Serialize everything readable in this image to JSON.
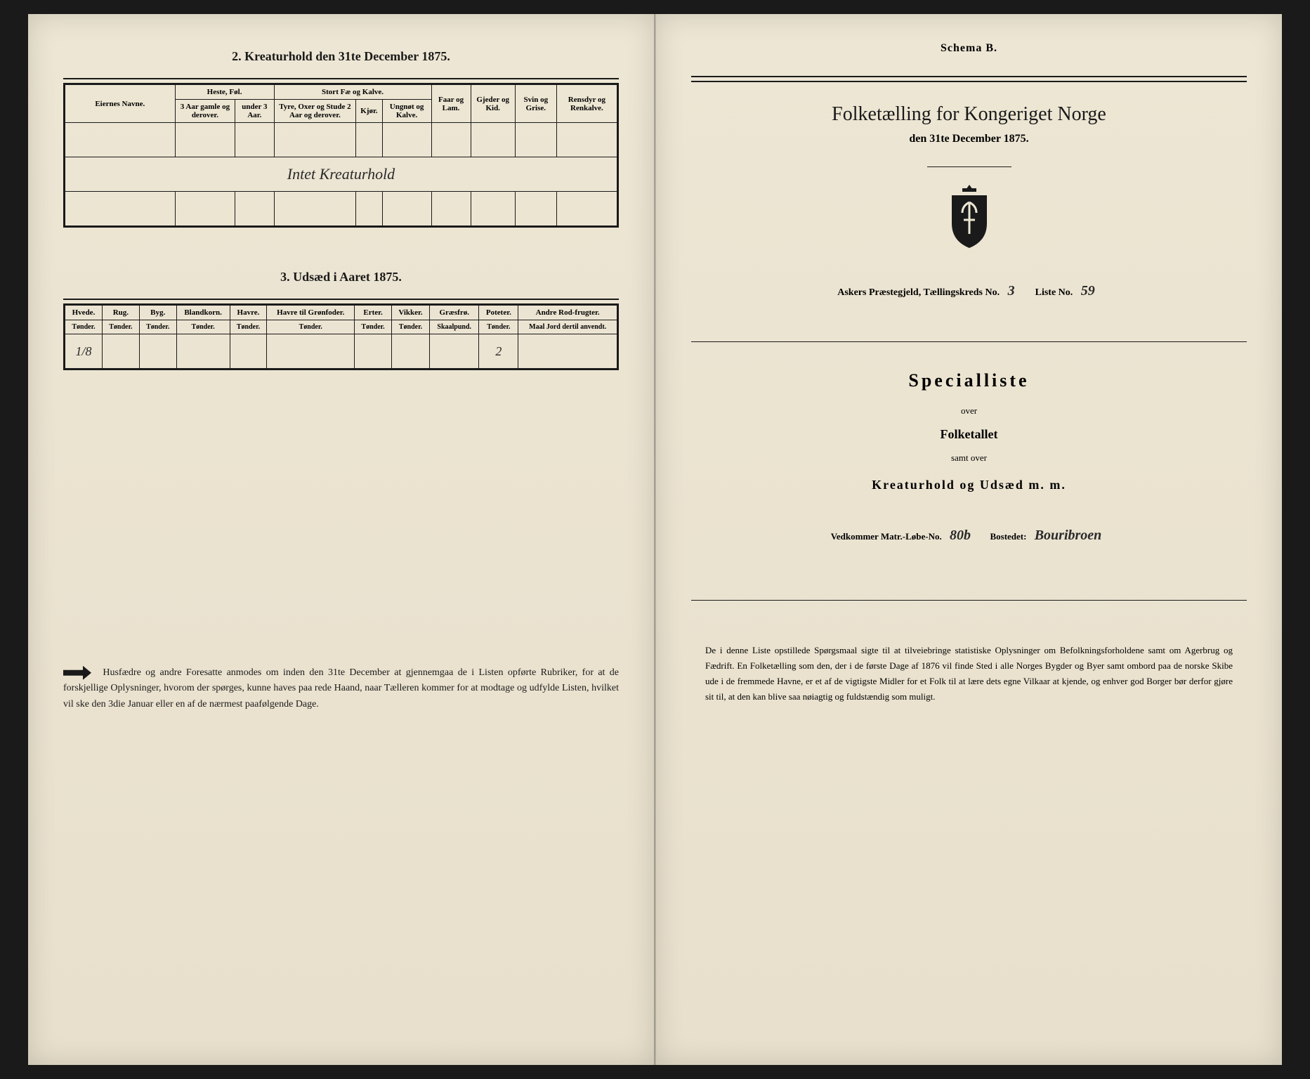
{
  "left": {
    "section2_title": "2. Kreaturhold den 31te December 1875.",
    "table2": {
      "eiernes_navne": "Eiernes Navne.",
      "heste_fol": "Heste, Føl.",
      "heste_col1": "3 Aar gamle og derover.",
      "heste_col2": "under 3 Aar.",
      "stort_fae": "Stort Fæ og Kalve.",
      "stort_col1": "Tyre, Oxer og Stude 2 Aar og derover.",
      "stort_col2": "Kjør.",
      "stort_col3": "Ungnøt og Kalve.",
      "faar": "Faar og Lam.",
      "gjeder": "Gjeder og Kid.",
      "svin": "Svin og Grise.",
      "rensdyr": "Rensdyr og Renkalve.",
      "handwritten_note": "Intet Kreaturhold"
    },
    "section3_title": "3. Udsæd i Aaret 1875.",
    "table3": {
      "cols": [
        {
          "h1": "Hvede.",
          "h2": "Tønder."
        },
        {
          "h1": "Rug.",
          "h2": "Tønder."
        },
        {
          "h1": "Byg.",
          "h2": "Tønder."
        },
        {
          "h1": "Blandkorn.",
          "h2": "Tønder."
        },
        {
          "h1": "Havre.",
          "h2": "Tønder."
        },
        {
          "h1": "Havre til Grønfoder.",
          "h2": "Tønder."
        },
        {
          "h1": "Erter.",
          "h2": "Tønder."
        },
        {
          "h1": "Vikker.",
          "h2": "Tønder."
        },
        {
          "h1": "Græsfrø.",
          "h2": "Skaalpund."
        },
        {
          "h1": "Poteter.",
          "h2": "Tønder."
        },
        {
          "h1": "Andre Rod-frugter.",
          "h2": "Maal Jord dertil anvendt."
        }
      ],
      "row_hvede": "1/8",
      "row_poteter": "2"
    },
    "footer": "Husfædre og andre Foresatte anmodes om inden den 31te December at gjennemgaa de i Listen opførte Rubriker, for at de forskjellige Oplysninger, hvorom der spørges, kunne haves paa rede Haand, naar Tælleren kommer for at modtage og udfylde Listen, hvilket vil ske den 3die Januar eller en af de nærmest paafølgende Dage."
  },
  "right": {
    "schema": "Schema B.",
    "main_title": "Folketælling for Kongeriget Norge",
    "date_line": "den 31te December 1875.",
    "fillin_prefix": "Askers Præstegjeld, Tællingskreds No.",
    "kreds_no": "3",
    "liste_label": "Liste No.",
    "liste_no": "59",
    "special": "Specialliste",
    "over": "over",
    "folketallet": "Folketallet",
    "samt_over": "samt over",
    "kreatur": "Kreaturhold og Udsæd m. m.",
    "vedkommer": "Vedkommer Matr.-Løbe-No.",
    "matr_no": "80b",
    "bostedet": "Bostedet:",
    "bosted_name": "Bouribroen",
    "footer": "De i denne Liste opstillede Spørgsmaal sigte til at tilveiebringe statistiske Oplysninger om Befolkningsforholdene samt om Agerbrug og Fædrift. En Folketælling som den, der i de første Dage af 1876 vil finde Sted i alle Norges Bygder og Byer samt ombord paa de norske Skibe ude i de fremmede Havne, er et af de vigtigste Midler for et Folk til at lære dets egne Vilkaar at kjende, og enhver god Borger bør derfor gjøre sit til, at den kan blive saa nøiagtig og fuldstændig som muligt."
  },
  "colors": {
    "paper": "#ede6d4",
    "ink": "#1a1a1a",
    "background": "#2a2a2a"
  }
}
